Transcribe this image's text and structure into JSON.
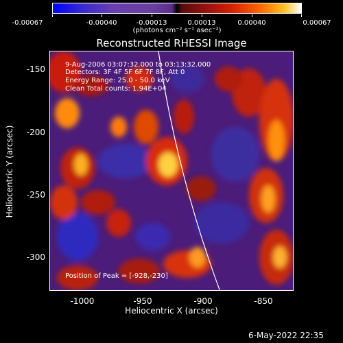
{
  "colorbar": {
    "ticks": [
      "-0.00067",
      "-0.00040",
      "-0.00013",
      "0.00013",
      "0.00040",
      "0.00067"
    ],
    "units": "(photons cm⁻² s⁻¹ asec⁻²)"
  },
  "title": "Reconstructed RHESSI Image",
  "annotations": {
    "time": "9-Aug-2006 03:07:32.000 to 03:13:32.000",
    "detectors": "Detectors: 3F 4F 5F 6F 7F 8F, Att 0",
    "energy": "Energy Range: 25.0 - 50.0 keV",
    "clean": "Clean     Total counts: 1.94E+04",
    "peak": "Position of Peak = [-928,-230]"
  },
  "axes": {
    "xlabel": "Heliocentric X (arcsec)",
    "ylabel": "Heliocentric Y (arcsec)",
    "xticks": [
      "-1000",
      "-950",
      "-900",
      "-850"
    ],
    "yticks": [
      "-150",
      "-200",
      "-250",
      "-300"
    ]
  },
  "datestamp": "6-May-2022 22:35"
}
